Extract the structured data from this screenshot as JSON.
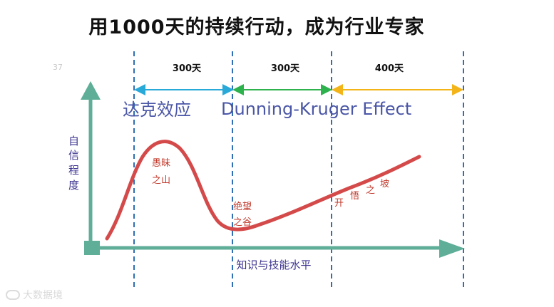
{
  "title": "用1000天的持续行动，成为行业专家",
  "page_number": "37",
  "watermark": "大数据境",
  "chart": {
    "segments": [
      {
        "label": "300天",
        "color": "#29a9d8"
      },
      {
        "label": "300天",
        "color": "#2eb24e"
      },
      {
        "label": "400天",
        "color": "#f2b418"
      }
    ],
    "effect_title_cn": "达克效应",
    "effect_title_en": "Dunning-Kruger Effect",
    "y_axis_label": [
      "自",
      "信",
      "程",
      "度"
    ],
    "x_axis_label": "知识与技能水平",
    "axis_color": "#5fae98",
    "curve_color": "#d44a4a",
    "curve_labels": {
      "peak": [
        "愚昧",
        "之山"
      ],
      "valley": [
        "绝望",
        "之谷"
      ],
      "slope": [
        "开",
        "悟",
        "之",
        "坡"
      ]
    }
  }
}
